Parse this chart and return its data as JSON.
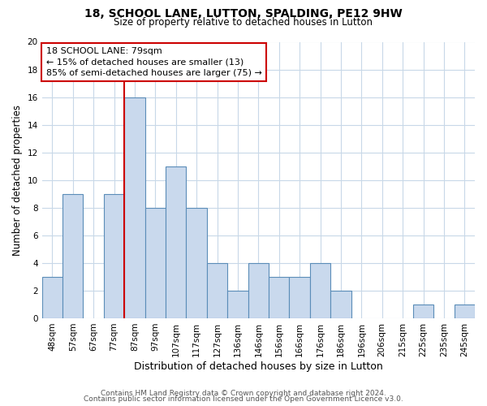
{
  "title": "18, SCHOOL LANE, LUTTON, SPALDING, PE12 9HW",
  "subtitle": "Size of property relative to detached houses in Lutton",
  "xlabel": "Distribution of detached houses by size in Lutton",
  "ylabel": "Number of detached properties",
  "bins": [
    "48sqm",
    "57sqm",
    "67sqm",
    "77sqm",
    "87sqm",
    "97sqm",
    "107sqm",
    "117sqm",
    "127sqm",
    "136sqm",
    "146sqm",
    "156sqm",
    "166sqm",
    "176sqm",
    "186sqm",
    "196sqm",
    "206sqm",
    "215sqm",
    "225sqm",
    "235sqm",
    "245sqm"
  ],
  "counts": [
    3,
    9,
    0,
    9,
    16,
    8,
    11,
    8,
    4,
    2,
    4,
    3,
    3,
    4,
    2,
    0,
    0,
    0,
    1,
    0,
    1
  ],
  "bar_color": "#c9d9ed",
  "bar_edge_color": "#5b8db8",
  "vline_x_index": 3.5,
  "vline_color": "#cc0000",
  "annotation_text": "18 SCHOOL LANE: 79sqm\n← 15% of detached houses are smaller (13)\n85% of semi-detached houses are larger (75) →",
  "annotation_box_color": "white",
  "annotation_box_edge_color": "#cc0000",
  "ylim": [
    0,
    20
  ],
  "yticks": [
    0,
    2,
    4,
    6,
    8,
    10,
    12,
    14,
    16,
    18,
    20
  ],
  "footer_line1": "Contains HM Land Registry data © Crown copyright and database right 2024.",
  "footer_line2": "Contains public sector information licensed under the Open Government Licence v3.0.",
  "background_color": "#ffffff",
  "grid_color": "#c8d8e8",
  "title_fontsize": 10,
  "subtitle_fontsize": 8.5,
  "ylabel_fontsize": 8.5,
  "xlabel_fontsize": 9,
  "tick_fontsize": 7.5,
  "annotation_fontsize": 8,
  "footer_fontsize": 6.5
}
